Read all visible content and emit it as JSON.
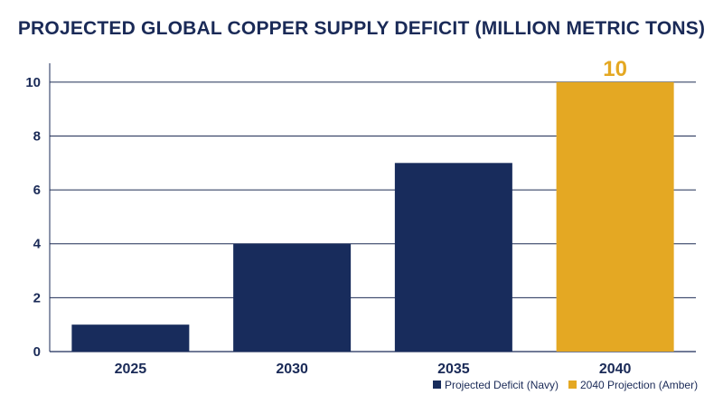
{
  "chart_data": {
    "type": "bar",
    "title": "PROJECTED GLOBAL COPPER SUPPLY DEFICIT (MILLION METRIC TONS)",
    "categories": [
      "2025",
      "2030",
      "2035",
      "2040"
    ],
    "values": [
      1,
      4,
      7,
      10
    ],
    "bar_colors": [
      "#182c5c",
      "#182c5c",
      "#182c5c",
      "#e4a823"
    ],
    "data_labels": [
      {
        "index": 3,
        "text": "10"
      }
    ],
    "yticks": [
      0,
      2,
      4,
      6,
      8,
      10
    ],
    "ylim": [
      0,
      10.7
    ],
    "grid": true,
    "legend_position": "bottom-right",
    "legend": [
      {
        "label": "Projected Deficit (Navy)",
        "color": "#182c5c"
      },
      {
        "label": "2040 Projection (Amber)",
        "color": "#e4a823"
      }
    ]
  }
}
